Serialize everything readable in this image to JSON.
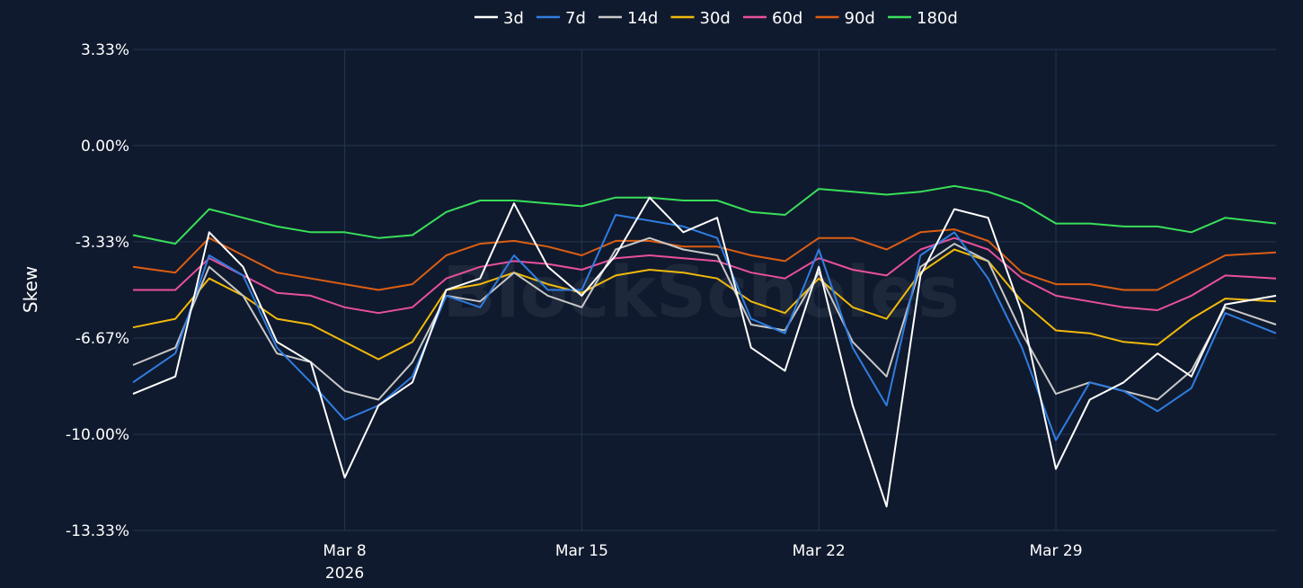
{
  "watermark": "BlockScholes",
  "chart_data": {
    "type": "line",
    "title": "",
    "xlabel": "",
    "ylabel": "Skew",
    "ylim": [
      -13.33,
      3.33
    ],
    "y_ticks": [
      3.33,
      0.0,
      -3.33,
      -6.67,
      -10.0,
      -13.33
    ],
    "y_tick_labels": [
      "3.33%",
      "0.00%",
      "-3.33%",
      "-6.67%",
      "-10.00%",
      "-13.33%"
    ],
    "x_range": [
      "2026-03-01T18:00",
      "2026-04-04T12:00"
    ],
    "x_ticks": [
      "2026-03-08",
      "2026-03-15",
      "2026-03-22",
      "2026-03-29"
    ],
    "x_tick_labels": [
      "Mar 8",
      "Mar 15",
      "Mar 22",
      "Mar 29"
    ],
    "x_tick_sublabel": {
      "2026-03-08": "2026"
    },
    "grid": true,
    "legend_position": "top-center",
    "x": [
      "2026-03-01T18:00",
      "2026-03-03T00:00",
      "2026-03-04T00:00",
      "2026-03-05T00:00",
      "2026-03-06T00:00",
      "2026-03-07T00:00",
      "2026-03-08T00:00",
      "2026-03-09T00:00",
      "2026-03-10T00:00",
      "2026-03-11T00:00",
      "2026-03-12T00:00",
      "2026-03-13T00:00",
      "2026-03-14T00:00",
      "2026-03-15T00:00",
      "2026-03-16T00:00",
      "2026-03-17T00:00",
      "2026-03-18T00:00",
      "2026-03-19T00:00",
      "2026-03-20T00:00",
      "2026-03-21T00:00",
      "2026-03-22T00:00",
      "2026-03-23T00:00",
      "2026-03-24T00:00",
      "2026-03-25T00:00",
      "2026-03-26T00:00",
      "2026-03-27T00:00",
      "2026-03-28T00:00",
      "2026-03-29T00:00",
      "2026-03-30T00:00",
      "2026-03-31T00:00",
      "2026-04-01T00:00",
      "2026-04-02T00:00",
      "2026-04-03T00:00",
      "2026-04-04T12:00"
    ],
    "series": [
      {
        "name": "3d",
        "color": "#ffffff",
        "values": [
          -8.6,
          -8.0,
          -3.0,
          -4.2,
          -6.8,
          -7.5,
          -11.5,
          -9.0,
          -8.2,
          -5.0,
          -4.6,
          -2.0,
          -4.2,
          -5.2,
          -3.8,
          -1.8,
          -3.0,
          -2.5,
          -7.0,
          -7.8,
          -4.2,
          -9.0,
          -12.5,
          -4.5,
          -2.2,
          -2.5,
          -5.8,
          -11.2,
          -8.8,
          -8.2,
          -7.2,
          -8.0,
          -5.5,
          -5.2
        ]
      },
      {
        "name": "7d",
        "color": "#2f7de0",
        "values": [
          -8.2,
          -7.2,
          -3.8,
          -4.5,
          -7.0,
          -8.2,
          -9.5,
          -9.0,
          -8.0,
          -5.2,
          -5.6,
          -3.8,
          -5.0,
          -5.0,
          -2.4,
          -2.6,
          -2.8,
          -3.2,
          -6.0,
          -6.5,
          -3.6,
          -7.0,
          -9.0,
          -3.8,
          -3.0,
          -4.6,
          -7.0,
          -10.2,
          -8.2,
          -8.5,
          -9.2,
          -8.4,
          -5.8,
          -6.5
        ]
      },
      {
        "name": "14d",
        "color": "#c8c8c8",
        "values": [
          -7.6,
          -7.0,
          -4.2,
          -5.2,
          -7.2,
          -7.5,
          -8.5,
          -8.8,
          -7.5,
          -5.2,
          -5.4,
          -4.4,
          -5.2,
          -5.6,
          -3.6,
          -3.2,
          -3.6,
          -3.8,
          -6.2,
          -6.4,
          -4.4,
          -6.8,
          -8.0,
          -4.2,
          -3.4,
          -4.0,
          -6.5,
          -8.6,
          -8.2,
          -8.5,
          -8.8,
          -7.8,
          -5.6,
          -6.2
        ]
      },
      {
        "name": "30d",
        "color": "#f0b90b",
        "values": [
          -6.3,
          -6.0,
          -4.6,
          -5.2,
          -6.0,
          -6.2,
          -6.8,
          -7.4,
          -6.8,
          -5.0,
          -4.8,
          -4.4,
          -4.8,
          -5.1,
          -4.5,
          -4.3,
          -4.4,
          -4.6,
          -5.4,
          -5.8,
          -4.6,
          -5.6,
          -6.0,
          -4.4,
          -3.6,
          -4.0,
          -5.4,
          -6.4,
          -6.5,
          -6.8,
          -6.9,
          -6.0,
          -5.3,
          -5.4
        ]
      },
      {
        "name": "60d",
        "color": "#e8509c",
        "values": [
          -5.0,
          -5.0,
          -3.9,
          -4.5,
          -5.1,
          -5.2,
          -5.6,
          -5.8,
          -5.6,
          -4.6,
          -4.2,
          -4.0,
          -4.1,
          -4.3,
          -3.9,
          -3.8,
          -3.9,
          -4.0,
          -4.4,
          -4.6,
          -3.9,
          -4.3,
          -4.5,
          -3.6,
          -3.2,
          -3.6,
          -4.6,
          -5.2,
          -5.4,
          -5.6,
          -5.7,
          -5.2,
          -4.5,
          -4.6
        ]
      },
      {
        "name": "90d",
        "color": "#dc5e12",
        "values": [
          -4.2,
          -4.4,
          -3.2,
          -3.8,
          -4.4,
          -4.6,
          -4.8,
          -5.0,
          -4.8,
          -3.8,
          -3.4,
          -3.3,
          -3.5,
          -3.8,
          -3.3,
          -3.3,
          -3.5,
          -3.5,
          -3.8,
          -4.0,
          -3.2,
          -3.2,
          -3.6,
          -3.0,
          -2.9,
          -3.3,
          -4.4,
          -4.8,
          -4.8,
          -5.0,
          -5.0,
          -4.4,
          -3.8,
          -3.7
        ]
      },
      {
        "name": "180d",
        "color": "#38e05a",
        "values": [
          -3.1,
          -3.4,
          -2.2,
          -2.5,
          -2.8,
          -3.0,
          -3.0,
          -3.2,
          -3.1,
          -2.3,
          -1.9,
          -1.9,
          -2.0,
          -2.1,
          -1.8,
          -1.8,
          -1.9,
          -1.9,
          -2.3,
          -2.4,
          -1.5,
          -1.6,
          -1.7,
          -1.6,
          -1.4,
          -1.6,
          -2.0,
          -2.7,
          -2.7,
          -2.8,
          -2.8,
          -3.0,
          -2.5,
          -2.7
        ]
      }
    ]
  }
}
